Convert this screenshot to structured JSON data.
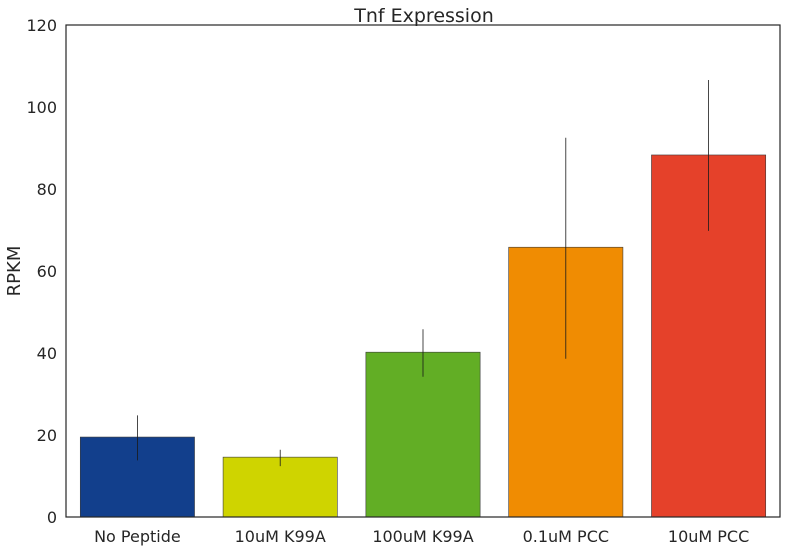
{
  "chart_data": {
    "type": "bar",
    "title": "Tnf Expression",
    "xlabel": "",
    "ylabel": "RPKM",
    "ylim": [
      0,
      120
    ],
    "yticks": [
      0,
      20,
      40,
      60,
      80,
      100,
      120
    ],
    "grid": false,
    "categories": [
      "No Peptide",
      "10uM K99A",
      "100uM K99A",
      "0.1uM PCC",
      "10uM PCC"
    ],
    "values": [
      19.5,
      14.6,
      40.2,
      65.8,
      88.3
    ],
    "error_low": [
      13.8,
      12.4,
      34.2,
      38.6,
      69.8
    ],
    "error_high": [
      24.8,
      16.4,
      45.8,
      92.5,
      106.6
    ],
    "colors": [
      "#123f8c",
      "#cfd400",
      "#62ae25",
      "#f08c02",
      "#e5412a"
    ]
  }
}
